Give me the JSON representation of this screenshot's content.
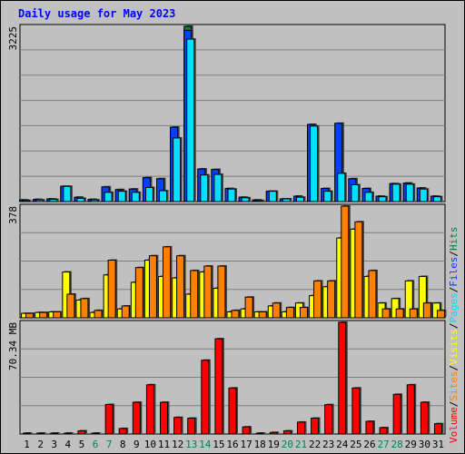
{
  "colors": {
    "background": "#c0c0c0",
    "grid": "#808080",
    "hits": "#008040",
    "files": "#0040ff",
    "pages": "#00e0ff",
    "visits": "#ffff00",
    "sites": "#ff8000",
    "volume": "#ff0000",
    "weekend": "#00805c",
    "title": "#0000ff"
  },
  "chart_data": {
    "type": "bar",
    "title": "Daily usage for May 2023",
    "categories": [
      "1",
      "2",
      "3",
      "4",
      "5",
      "6",
      "7",
      "8",
      "9",
      "10",
      "11",
      "12",
      "13",
      "14",
      "15",
      "16",
      "17",
      "18",
      "19",
      "20",
      "21",
      "22",
      "23",
      "24",
      "25",
      "26",
      "27",
      "28",
      "29",
      "30",
      "31"
    ],
    "weekend_days": [
      "6",
      "7",
      "13",
      "14",
      "20",
      "21",
      "27",
      "28"
    ],
    "legend": [
      {
        "label": "Hits",
        "color": "#008040"
      },
      {
        "label": "Files",
        "color": "#0040ff"
      },
      {
        "label": "Pages",
        "color": "#00e0ff"
      },
      {
        "label": "Visits",
        "color": "#ffff00"
      },
      {
        "label": "Sites",
        "color": "#ff8000"
      },
      {
        "label": "Volume",
        "color": "#ff0000"
      }
    ],
    "legend_separator": "/",
    "panels": [
      {
        "name": "hits-files-pages",
        "max_label": "3225",
        "ylim": [
          0,
          3225
        ],
        "series": [
          {
            "name": "Hits",
            "values": [
              30,
              40,
              50,
              280,
              80,
              40,
              270,
              220,
              230,
              440,
              420,
              1370,
              3225,
              600,
              590,
              240,
              80,
              30,
              190,
              50,
              100,
              1420,
              240,
              1440,
              420,
              240,
              100,
              330,
              340,
              250,
              100
            ]
          },
          {
            "name": "Files",
            "values": [
              30,
              40,
              50,
              280,
              80,
              40,
              270,
              220,
              230,
              440,
              420,
              1370,
              3150,
              600,
              590,
              240,
              80,
              30,
              190,
              50,
              100,
              1420,
              240,
              1440,
              420,
              240,
              100,
              330,
              340,
              250,
              100
            ]
          },
          {
            "name": "Pages",
            "values": [
              20,
              30,
              40,
              280,
              60,
              30,
              170,
              190,
              170,
              260,
              200,
              1170,
              2990,
              490,
              500,
              230,
              70,
              20,
              190,
              50,
              80,
              1390,
              190,
              520,
              310,
              170,
              90,
              320,
              320,
              230,
              90
            ]
          }
        ]
      },
      {
        "name": "visits-sites",
        "max_label": "378",
        "ylim": [
          0,
          378
        ],
        "series": [
          {
            "name": "Visits",
            "values": [
              15,
              18,
              20,
              155,
              60,
              18,
              145,
              30,
              120,
              195,
              140,
              135,
              80,
              155,
              100,
              20,
              30,
              20,
              40,
              20,
              50,
              75,
              105,
              270,
              300,
              140,
              50,
              65,
              125,
              140,
              50
            ]
          },
          {
            "name": "Sites",
            "values": [
              15,
              18,
              20,
              80,
              65,
              25,
              195,
              40,
              170,
              210,
              240,
              210,
              160,
              175,
              175,
              25,
              70,
              20,
              50,
              35,
              35,
              125,
              125,
              378,
              325,
              160,
              30,
              30,
              30,
              50,
              25
            ]
          }
        ]
      },
      {
        "name": "volume",
        "max_label": "70.34 MB",
        "ylim": [
          0,
          70.34
        ],
        "series": [
          {
            "name": "Volume",
            "values": [
              0.5,
              0.5,
              0.5,
              0.5,
              2.0,
              0.5,
              18.6,
              3.5,
              20.0,
              31.0,
              20.0,
              10.5,
              10.0,
              46.5,
              60.0,
              29.0,
              4.5,
              0.5,
              1.0,
              2.0,
              7.5,
              10.0,
              18.5,
              70.34,
              29.0,
              8.0,
              4.0,
              25.0,
              31.0,
              20.0,
              6.5
            ]
          }
        ]
      }
    ]
  }
}
